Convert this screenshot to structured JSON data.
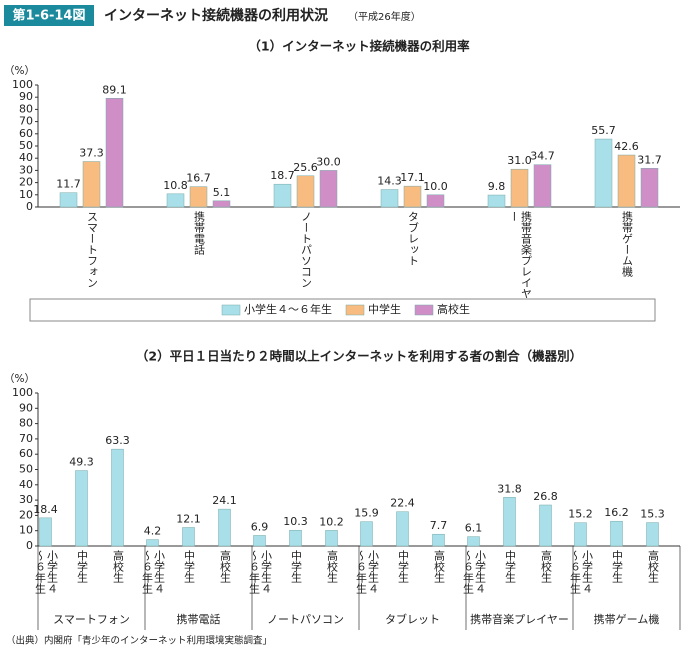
{
  "header": {
    "figure_no": "第1-6-14図",
    "title": "インターネット接続機器の利用状況",
    "subtitle": "（平成26年度）"
  },
  "source": "（出典）内閣府「青少年のインターネット利用環境実態調査」",
  "chart_data": [
    {
      "type": "bar",
      "title": "（1）インターネット接続機器の利用率",
      "y_label": "（%）",
      "categories": [
        "スマートフォン",
        "携帯電話",
        "ノートパソコン",
        "タブレット",
        "携帯音楽プレイヤー",
        "携帯ゲーム機"
      ],
      "series": [
        {
          "name": "小学生４～６年生",
          "color": "#a9dfe8",
          "values": [
            11.7,
            10.8,
            18.7,
            14.3,
            9.8,
            55.7
          ]
        },
        {
          "name": "中学生",
          "color": "#f8bb80",
          "values": [
            37.3,
            16.7,
            25.6,
            17.1,
            31.0,
            42.6
          ],
          "value_labels": [
            "37.3",
            "16.7",
            "25.6",
            "17.1",
            "31.0",
            "42.6"
          ]
        },
        {
          "name": "高校生",
          "color": "#d08ec6",
          "values": [
            89.1,
            5.1,
            30.0,
            10.0,
            34.7,
            31.7
          ],
          "value_labels": [
            "89.1",
            "5.1",
            "30.0",
            "10.0",
            "34.7",
            "31.7"
          ]
        }
      ],
      "ylim": [
        0,
        100
      ],
      "yticks": [
        0,
        10,
        20,
        30,
        40,
        50,
        60,
        70,
        80,
        90,
        100
      ],
      "legend": "bottom"
    },
    {
      "type": "bar",
      "title": "（2）平日１日当たり２時間以上インターネットを利用する者の割合（機器別）",
      "y_label": "（%）",
      "categories": [
        "スマートフォン",
        "携帯電話",
        "ノートパソコン",
        "タブレット",
        "携帯音楽プレイヤー",
        "携帯ゲーム機"
      ],
      "series": [
        {
          "name": "小学生４～６年生",
          "color": "#a9dfe8",
          "values": [
            18.4,
            4.2,
            6.9,
            15.9,
            6.1,
            15.2
          ]
        },
        {
          "name": "中学生",
          "color": "#a9dfe8",
          "values": [
            49.3,
            12.1,
            10.3,
            22.4,
            31.8,
            16.2
          ]
        },
        {
          "name": "高校生",
          "color": "#a9dfe8",
          "values": [
            63.3,
            24.1,
            10.2,
            7.7,
            26.8,
            15.3
          ]
        }
      ],
      "ylim": [
        0,
        100
      ],
      "yticks": [
        0,
        10,
        20,
        30,
        40,
        50,
        60,
        70,
        80,
        90,
        100
      ]
    }
  ]
}
